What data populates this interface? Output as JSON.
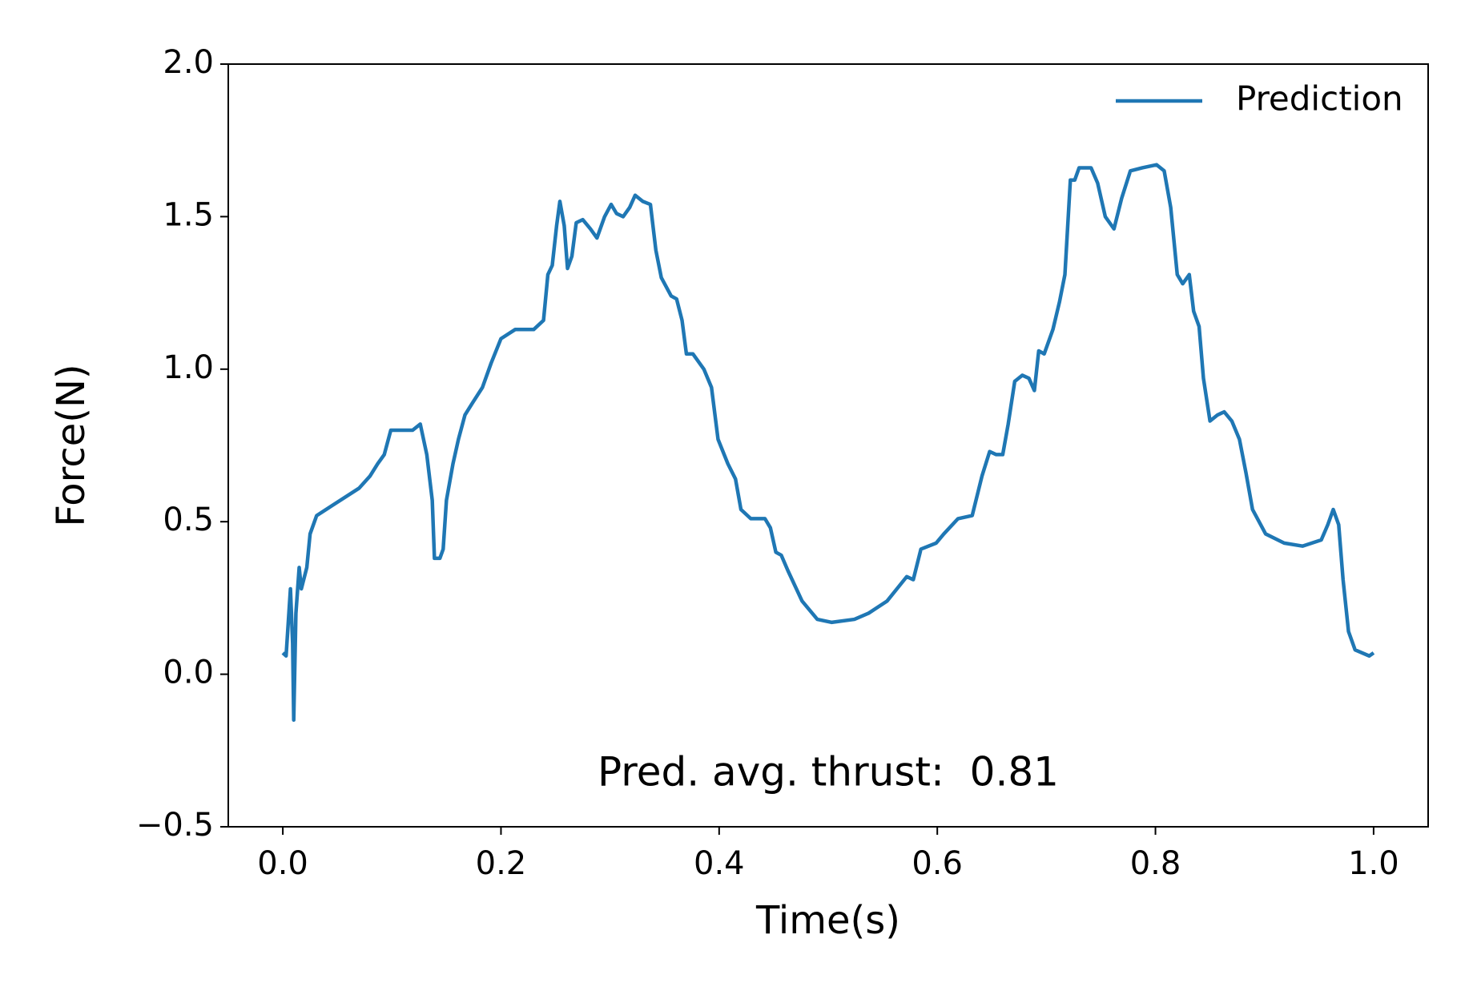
{
  "chart_data": {
    "type": "line",
    "xlabel": "Time(s)",
    "ylabel": "Force(N)",
    "annotation": "Pred. avg. thrust:  0.81",
    "legend": "upper right",
    "xlim": [
      -0.05,
      1.05
    ],
    "ylim": [
      -0.5,
      2.0
    ],
    "xticks": [
      {
        "value": 0,
        "label": "0.0"
      },
      0.2,
      0.4,
      0.6,
      0.8,
      {
        "value": 1,
        "label": "1.0"
      }
    ],
    "yticks": [
      {
        "value": -0.5,
        "label": "−0.5"
      },
      {
        "value": 0,
        "label": "0.0"
      },
      0.5,
      {
        "value": 1,
        "label": "1.0"
      },
      1.5,
      {
        "value": 2,
        "label": "2.0"
      }
    ],
    "x": [
      0,
      0.003,
      0.005,
      0.007,
      0.009,
      0.01,
      0.012,
      0.015,
      0.017,
      0.022,
      0.025,
      0.031,
      0.044,
      0.07,
      0.08,
      0.087,
      0.093,
      0.099,
      0.105,
      0.119,
      0.126,
      0.132,
      0.137,
      0.139,
      0.144,
      0.147,
      0.15,
      0.153,
      0.156,
      0.161,
      0.167,
      0.174,
      0.183,
      0.191,
      0.2,
      0.213,
      0.23,
      0.239,
      0.243,
      0.247,
      0.251,
      0.254,
      0.258,
      0.261,
      0.265,
      0.269,
      0.275,
      0.282,
      0.288,
      0.295,
      0.301,
      0.306,
      0.312,
      0.318,
      0.323,
      0.33,
      0.337,
      0.342,
      0.347,
      0.356,
      0.361,
      0.366,
      0.37,
      0.376,
      0.386,
      0.393,
      0.399,
      0.408,
      0.415,
      0.42,
      0.429,
      0.436,
      0.442,
      0.447,
      0.452,
      0.457,
      0.463,
      0.476,
      0.49,
      0.503,
      0.524,
      0.537,
      0.554,
      0.563,
      0.572,
      0.578,
      0.585,
      0.599,
      0.606,
      0.619,
      0.632,
      0.641,
      0.648,
      0.654,
      0.66,
      0.665,
      0.671,
      0.678,
      0.684,
      0.689,
      0.693,
      0.698,
      0.706,
      0.712,
      0.717,
      0.722,
      0.726,
      0.73,
      0.741,
      0.747,
      0.754,
      0.762,
      0.769,
      0.777,
      0.788,
      0.801,
      0.808,
      0.814,
      0.82,
      0.825,
      0.831,
      0.835,
      0.84,
      0.844,
      0.85,
      0.857,
      0.863,
      0.87,
      0.877,
      0.883,
      0.889,
      0.901,
      0.918,
      0.935,
      0.952,
      0.958,
      0.963,
      0.968,
      0.972,
      0.977,
      0.983,
      0.996,
      1.0
    ],
    "series": [
      {
        "name": "Prediction",
        "color": "#1f77b4",
        "values": [
          0.07,
          0.06,
          0.17,
          0.28,
          0.1,
          -0.15,
          0.2,
          0.35,
          0.28,
          0.35,
          0.46,
          0.52,
          0.55,
          0.61,
          0.65,
          0.69,
          0.72,
          0.8,
          0.8,
          0.8,
          0.82,
          0.72,
          0.57,
          0.38,
          0.38,
          0.41,
          0.57,
          0.63,
          0.69,
          0.77,
          0.85,
          0.89,
          0.94,
          1.02,
          1.1,
          1.13,
          1.13,
          1.16,
          1.31,
          1.34,
          1.47,
          1.55,
          1.47,
          1.33,
          1.37,
          1.48,
          1.49,
          1.46,
          1.43,
          1.5,
          1.54,
          1.51,
          1.5,
          1.53,
          1.57,
          1.55,
          1.54,
          1.39,
          1.3,
          1.24,
          1.23,
          1.16,
          1.05,
          1.05,
          1.0,
          0.94,
          0.77,
          0.69,
          0.64,
          0.54,
          0.51,
          0.51,
          0.51,
          0.48,
          0.4,
          0.39,
          0.34,
          0.24,
          0.18,
          0.17,
          0.18,
          0.2,
          0.24,
          0.28,
          0.32,
          0.31,
          0.41,
          0.43,
          0.46,
          0.51,
          0.52,
          0.65,
          0.73,
          0.72,
          0.72,
          0.82,
          0.96,
          0.98,
          0.97,
          0.93,
          1.06,
          1.05,
          1.13,
          1.22,
          1.31,
          1.62,
          1.62,
          1.66,
          1.66,
          1.61,
          1.5,
          1.46,
          1.56,
          1.65,
          1.66,
          1.67,
          1.65,
          1.53,
          1.31,
          1.28,
          1.31,
          1.19,
          1.14,
          0.97,
          0.83,
          0.85,
          0.86,
          0.83,
          0.77,
          0.66,
          0.54,
          0.46,
          0.43,
          0.42,
          0.44,
          0.49,
          0.54,
          0.49,
          0.31,
          0.14,
          0.08,
          0.06,
          0.07
        ]
      }
    ]
  }
}
